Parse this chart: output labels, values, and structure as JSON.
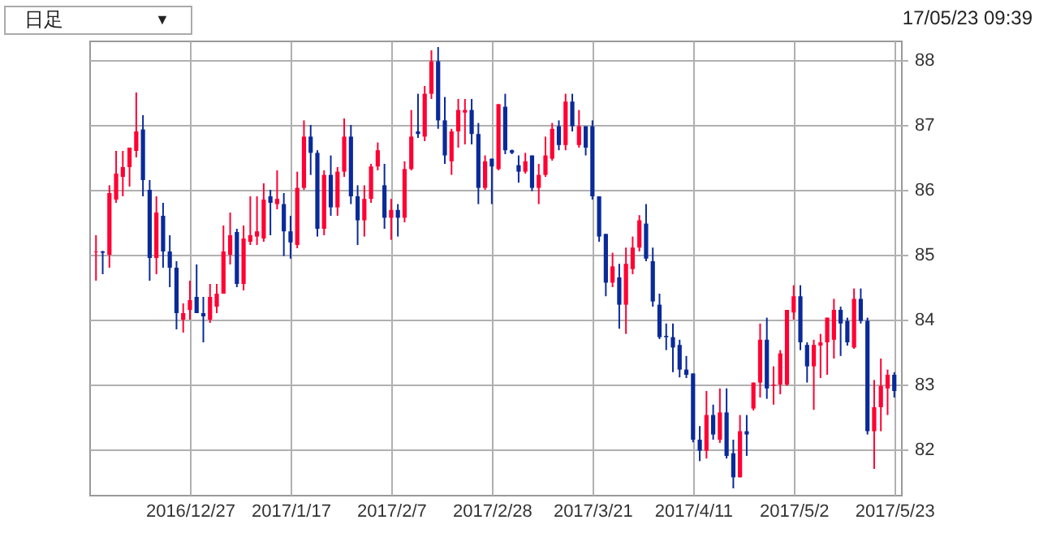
{
  "chart_data": {
    "type": "candlestick",
    "categories": [
      null,
      null,
      null,
      null,
      null,
      null,
      null,
      null,
      null,
      null,
      null,
      null,
      null,
      null,
      "2016/12/27",
      null,
      null,
      null,
      null,
      null,
      null,
      null,
      null,
      null,
      null,
      null,
      null,
      null,
      null,
      "2017/1/17",
      null,
      null,
      null,
      null,
      null,
      null,
      null,
      null,
      null,
      null,
      null,
      null,
      null,
      null,
      "2017/2/7",
      null,
      null,
      null,
      null,
      null,
      null,
      null,
      null,
      null,
      null,
      null,
      null,
      null,
      null,
      "2017/2/28",
      null,
      null,
      null,
      null,
      null,
      null,
      null,
      null,
      null,
      null,
      null,
      null,
      null,
      null,
      "2017/3/21",
      null,
      null,
      null,
      null,
      null,
      null,
      null,
      null,
      null,
      null,
      null,
      null,
      null,
      null,
      "2017/4/11",
      null,
      null,
      null,
      null,
      null,
      null,
      null,
      null,
      null,
      null,
      null,
      null,
      null,
      null,
      "2017/5/2",
      null,
      null,
      null,
      null,
      null,
      null,
      null,
      null,
      null,
      null,
      null,
      null,
      null,
      null,
      "2017/5/23"
    ],
    "ohlc": [
      [
        85.04,
        85.3,
        84.6,
        85.05
      ],
      [
        85.05,
        85.06,
        84.7,
        85.03
      ],
      [
        85.0,
        86.07,
        84.8,
        85.95
      ],
      [
        85.85,
        86.6,
        85.8,
        86.25
      ],
      [
        86.2,
        86.6,
        85.9,
        86.35
      ],
      [
        86.35,
        86.65,
        86.05,
        86.65
      ],
      [
        86.6,
        87.5,
        86.5,
        86.9
      ],
      [
        86.93,
        87.15,
        85.9,
        86.15
      ],
      [
        86.0,
        86.15,
        84.6,
        84.95
      ],
      [
        84.95,
        85.9,
        84.7,
        85.65
      ],
      [
        85.6,
        85.8,
        84.8,
        85.05
      ],
      [
        85.05,
        85.3,
        84.5,
        84.8
      ],
      [
        84.8,
        84.9,
        83.85,
        84.1
      ],
      [
        84.0,
        84.25,
        83.8,
        84.1
      ],
      [
        84.15,
        84.6,
        84.0,
        84.3
      ],
      [
        84.35,
        84.85,
        84.1,
        84.1
      ],
      [
        84.1,
        84.35,
        83.65,
        84.05
      ],
      [
        84.0,
        84.55,
        83.95,
        84.35
      ],
      [
        84.2,
        84.55,
        84.1,
        84.4
      ],
      [
        84.4,
        85.45,
        84.4,
        85.05
      ],
      [
        85.0,
        85.65,
        84.85,
        85.3
      ],
      [
        85.35,
        85.4,
        84.5,
        84.55
      ],
      [
        84.55,
        85.45,
        84.45,
        85.25
      ],
      [
        85.2,
        85.9,
        85.15,
        85.3
      ],
      [
        85.28,
        85.9,
        85.15,
        85.36
      ],
      [
        85.25,
        86.1,
        85.2,
        85.85
      ],
      [
        85.9,
        86.0,
        85.3,
        85.8
      ],
      [
        85.78,
        86.3,
        85.7,
        85.86
      ],
      [
        85.78,
        85.95,
        84.98,
        85.36
      ],
      [
        85.36,
        85.6,
        84.94,
        85.19
      ],
      [
        85.15,
        86.28,
        85.1,
        86.03
      ],
      [
        86.03,
        87.07,
        86.0,
        86.82
      ],
      [
        86.82,
        87.0,
        86.23,
        86.57
      ],
      [
        86.57,
        86.61,
        85.28,
        85.4
      ],
      [
        85.4,
        86.3,
        85.3,
        86.23
      ],
      [
        86.23,
        86.53,
        85.6,
        85.73
      ],
      [
        85.73,
        86.35,
        85.6,
        86.28
      ],
      [
        86.28,
        87.1,
        86.2,
        86.82
      ],
      [
        86.82,
        87.0,
        85.78,
        85.9
      ],
      [
        85.9,
        86.07,
        85.15,
        85.53
      ],
      [
        85.53,
        86.07,
        85.28,
        85.86
      ],
      [
        85.86,
        86.4,
        85.8,
        86.36
      ],
      [
        86.36,
        86.73,
        86.3,
        86.61
      ],
      [
        86.07,
        86.4,
        85.4,
        85.57
      ],
      [
        85.57,
        85.86,
        85.23,
        85.69
      ],
      [
        85.69,
        85.78,
        85.28,
        85.57
      ],
      [
        85.57,
        86.44,
        85.5,
        86.32
      ],
      [
        86.32,
        87.23,
        86.3,
        86.82
      ],
      [
        86.9,
        87.48,
        86.8,
        86.86
      ],
      [
        86.82,
        87.6,
        86.75,
        87.48
      ],
      [
        87.48,
        88.15,
        87.4,
        87.98
      ],
      [
        87.98,
        88.2,
        86.94,
        87.07
      ],
      [
        87.07,
        87.43,
        86.4,
        86.53
      ],
      [
        86.44,
        86.94,
        86.23,
        86.9
      ],
      [
        86.9,
        87.4,
        86.65,
        87.23
      ],
      [
        87.19,
        87.4,
        86.7,
        87.23
      ],
      [
        87.23,
        87.4,
        86.7,
        86.86
      ],
      [
        86.86,
        87.03,
        85.78,
        86.03
      ],
      [
        86.03,
        86.53,
        86.0,
        86.44
      ],
      [
        86.48,
        86.48,
        85.78,
        86.36
      ],
      [
        86.32,
        87.32,
        86.3,
        87.32
      ],
      [
        87.28,
        87.48,
        86.55,
        86.61
      ],
      [
        86.61,
        86.62,
        86.55,
        86.57
      ],
      [
        86.38,
        86.53,
        86.11,
        86.28
      ],
      [
        86.28,
        86.57,
        86.25,
        86.44
      ],
      [
        86.53,
        86.53,
        85.98,
        86.03
      ],
      [
        86.03,
        86.4,
        85.78,
        86.23
      ],
      [
        86.23,
        86.82,
        86.2,
        86.53
      ],
      [
        86.48,
        87.03,
        86.45,
        86.94
      ],
      [
        86.98,
        87.07,
        86.61,
        86.69
      ],
      [
        86.69,
        87.48,
        86.61,
        87.36
      ],
      [
        87.36,
        87.48,
        86.9,
        86.98
      ],
      [
        86.69,
        87.23,
        86.65,
        86.98
      ],
      [
        86.98,
        86.98,
        86.53,
        86.65
      ],
      [
        86.98,
        87.07,
        85.85,
        85.9
      ],
      [
        85.9,
        85.9,
        85.2,
        85.28
      ],
      [
        85.32,
        85.32,
        84.36,
        84.57
      ],
      [
        84.57,
        85.03,
        84.5,
        84.82
      ],
      [
        84.65,
        84.86,
        83.86,
        84.23
      ],
      [
        84.23,
        85.11,
        83.78,
        84.86
      ],
      [
        84.78,
        85.28,
        84.7,
        85.11
      ],
      [
        85.11,
        85.61,
        85.05,
        85.53
      ],
      [
        85.48,
        85.78,
        84.9,
        84.94
      ],
      [
        84.9,
        85.11,
        84.2,
        84.28
      ],
      [
        84.23,
        84.4,
        83.7,
        83.73
      ],
      [
        83.75,
        83.94,
        83.53,
        83.73
      ],
      [
        83.73,
        83.94,
        83.19,
        83.57
      ],
      [
        83.61,
        83.69,
        83.11,
        83.23
      ],
      [
        83.23,
        83.44,
        83.1,
        83.15
      ],
      [
        83.17,
        83.17,
        82.11,
        82.15
      ],
      [
        82.15,
        82.36,
        81.82,
        81.98
      ],
      [
        81.98,
        82.9,
        81.86,
        82.53
      ],
      [
        82.53,
        82.69,
        82.15,
        82.23
      ],
      [
        82.15,
        82.94,
        82.1,
        82.57
      ],
      [
        82.57,
        82.94,
        81.86,
        81.9
      ],
      [
        81.94,
        82.15,
        81.4,
        81.57
      ],
      [
        81.57,
        82.53,
        81.57,
        82.28
      ],
      [
        82.28,
        82.53,
        81.9,
        82.23
      ],
      [
        82.63,
        83.03,
        82.6,
        83.03
      ],
      [
        83.03,
        83.94,
        82.8,
        83.69
      ],
      [
        83.69,
        84.03,
        82.78,
        82.94
      ],
      [
        82.98,
        83.28,
        82.69,
        83.0
      ],
      [
        83.0,
        83.53,
        82.85,
        83.48
      ],
      [
        83.0,
        84.15,
        82.98,
        84.15
      ],
      [
        84.11,
        84.53,
        84.0,
        84.36
      ],
      [
        84.36,
        84.53,
        83.53,
        83.65
      ],
      [
        83.61,
        83.65,
        83.03,
        83.28
      ],
      [
        83.28,
        83.69,
        82.61,
        83.61
      ],
      [
        83.6,
        83.78,
        83.1,
        83.65
      ],
      [
        83.65,
        84.03,
        83.15,
        84.03
      ],
      [
        83.69,
        84.32,
        83.4,
        84.15
      ],
      [
        84.15,
        84.2,
        83.44,
        83.94
      ],
      [
        83.98,
        84.03,
        83.6,
        83.65
      ],
      [
        83.57,
        84.48,
        83.55,
        84.32
      ],
      [
        84.32,
        84.48,
        83.94,
        83.98
      ],
      [
        83.98,
        84.03,
        82.23,
        82.28
      ],
      [
        82.28,
        83.07,
        81.7,
        82.65
      ],
      [
        82.65,
        83.4,
        82.28,
        82.98
      ],
      [
        82.94,
        83.23,
        82.53,
        83.15
      ],
      [
        83.15,
        83.19,
        82.8,
        82.9
      ]
    ],
    "colors": [
      "#ff0033",
      "#0a2a9a",
      "#ff0033",
      "#ff0033",
      "#ff0033",
      "#ff0033",
      "#ff0033",
      "#0a2a9a",
      "#0a2a9a",
      "#ff0033",
      "#0a2a9a",
      "#0a2a9a",
      "#0a2a9a",
      "#ff0033",
      "#ff0033",
      "#0a2a9a",
      "#0a2a9a",
      "#ff0033",
      "#ff0033",
      "#ff0033",
      "#ff0033",
      "#0a2a9a",
      "#ff0033",
      "#ff0033",
      "#ff0033",
      "#ff0033",
      "#0a2a9a",
      "#ff0033",
      "#0a2a9a",
      "#0a2a9a",
      "#ff0033",
      "#ff0033",
      "#0a2a9a",
      "#0a2a9a",
      "#ff0033",
      "#0a2a9a",
      "#ff0033",
      "#ff0033",
      "#0a2a9a",
      "#0a2a9a",
      "#ff0033",
      "#ff0033",
      "#ff0033",
      "#0a2a9a",
      "#ff0033",
      "#0a2a9a",
      "#ff0033",
      "#ff0033",
      "#0a2a9a",
      "#ff0033",
      "#ff0033",
      "#0a2a9a",
      "#0a2a9a",
      "#ff0033",
      "#ff0033",
      "#ff0033",
      "#0a2a9a",
      "#0a2a9a",
      "#ff0033",
      "#0a2a9a",
      "#ff0033",
      "#0a2a9a",
      "#0a2a9a",
      "#0a2a9a",
      "#ff0033",
      "#0a2a9a",
      "#ff0033",
      "#ff0033",
      "#ff0033",
      "#0a2a9a",
      "#ff0033",
      "#0a2a9a",
      "#ff0033",
      "#0a2a9a",
      "#0a2a9a",
      "#0a2a9a",
      "#0a2a9a",
      "#ff0033",
      "#0a2a9a",
      "#ff0033",
      "#ff0033",
      "#ff0033",
      "#0a2a9a",
      "#0a2a9a",
      "#0a2a9a",
      "#0a2a9a",
      "#0a2a9a",
      "#0a2a9a",
      "#0a2a9a",
      "#0a2a9a",
      "#0a2a9a",
      "#ff0033",
      "#0a2a9a",
      "#ff0033",
      "#0a2a9a",
      "#0a2a9a",
      "#ff0033",
      "#0a2a9a",
      "#ff0033",
      "#ff0033",
      "#0a2a9a",
      "#ff0033",
      "#ff0033",
      "#ff0033",
      "#ff0033",
      "#0a2a9a",
      "#0a2a9a",
      "#ff0033",
      "#ff0033",
      "#ff0033",
      "#ff0033",
      "#0a2a9a",
      "#0a2a9a",
      "#ff0033",
      "#0a2a9a",
      "#0a2a9a",
      "#ff0033",
      "#ff0033",
      "#ff0033",
      "#0a2a9a"
    ],
    "ylim": [
      81.3,
      88.3
    ],
    "yticks": [
      82,
      83,
      84,
      85,
      86,
      87,
      88
    ],
    "grid": true,
    "annotations": [
      "日足",
      "▼",
      "17/05/23 09:39"
    ]
  }
}
